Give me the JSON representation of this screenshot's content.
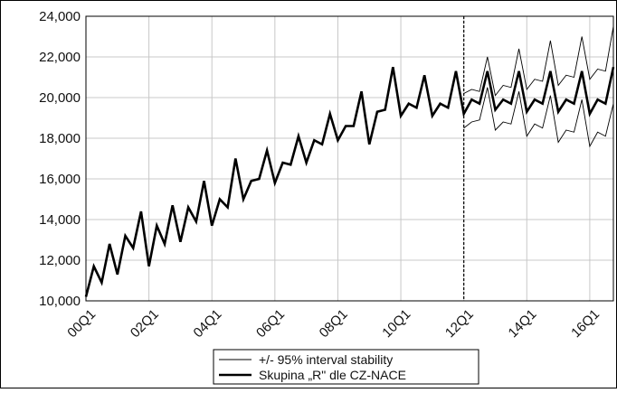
{
  "chart_data": {
    "type": "line",
    "xlabel": "",
    "ylabel": "",
    "ylim": [
      10000,
      24000
    ],
    "yticks": [
      10000,
      12000,
      14000,
      16000,
      18000,
      20000,
      22000,
      24000
    ],
    "ytick_labels": [
      "10,000",
      "12,000",
      "14,000",
      "16,000",
      "18,000",
      "20,000",
      "22,000",
      "24,000"
    ],
    "xticks": [
      "00Q1",
      "02Q1",
      "04Q1",
      "06Q1",
      "08Q1",
      "10Q1",
      "12Q1",
      "14Q1",
      "16Q1"
    ],
    "grid": true,
    "legend_position": "bottom",
    "forecast_start": "12Q1",
    "x": [
      "00Q1",
      "00Q2",
      "00Q3",
      "00Q4",
      "01Q1",
      "01Q2",
      "01Q3",
      "01Q4",
      "02Q1",
      "02Q2",
      "02Q3",
      "02Q4",
      "03Q1",
      "03Q2",
      "03Q3",
      "03Q4",
      "04Q1",
      "04Q2",
      "04Q3",
      "04Q4",
      "05Q1",
      "05Q2",
      "05Q3",
      "05Q4",
      "06Q1",
      "06Q2",
      "06Q3",
      "06Q4",
      "07Q1",
      "07Q2",
      "07Q3",
      "07Q4",
      "08Q1",
      "08Q2",
      "08Q3",
      "08Q4",
      "09Q1",
      "09Q2",
      "09Q3",
      "09Q4",
      "10Q1",
      "10Q2",
      "10Q3",
      "10Q4",
      "11Q1",
      "11Q2",
      "11Q3",
      "11Q4",
      "12Q1",
      "12Q2",
      "12Q3",
      "12Q4",
      "13Q1",
      "13Q2",
      "13Q3",
      "13Q4",
      "14Q1",
      "14Q2",
      "14Q3",
      "14Q4",
      "15Q1",
      "15Q2",
      "15Q3",
      "15Q4",
      "16Q1",
      "16Q2",
      "16Q3",
      "16Q4"
    ],
    "series": [
      {
        "name": "Skupina „R\" dle CZ-NACE",
        "color": "#000000",
        "values": [
          10200,
          11700,
          10900,
          12800,
          11300,
          13200,
          12600,
          14400,
          11700,
          13700,
          12800,
          14700,
          12900,
          14600,
          13900,
          15900,
          13700,
          15000,
          14600,
          17000,
          15000,
          15900,
          16000,
          17400,
          15800,
          16800,
          16700,
          18100,
          16800,
          17900,
          17700,
          19200,
          17900,
          18600,
          18600,
          20300,
          17700,
          19300,
          19400,
          21500,
          19100,
          19700,
          19500,
          21100,
          19100,
          19700,
          19500,
          21300,
          19200,
          19900,
          19700,
          21300,
          19400,
          19900,
          19700,
          21300,
          19300,
          19900,
          19700,
          21300,
          19300,
          19900,
          19700,
          21300,
          19200,
          19900,
          19700,
          21500
        ],
        "values_start": "00Q1"
      },
      {
        "name": "+/- 95% interval stability",
        "color": "#000000",
        "upper": [
          20200,
          20400,
          20300,
          22000,
          20100,
          20600,
          20500,
          22400,
          20400,
          20900,
          20800,
          22800,
          20600,
          21100,
          21000,
          23000,
          20900,
          21400,
          21300,
          23500
        ],
        "lower": [
          18500,
          18800,
          18900,
          20500,
          18400,
          18800,
          18700,
          20300,
          18100,
          18700,
          18500,
          20100,
          17800,
          18400,
          18300,
          19900,
          17600,
          18300,
          18100,
          19700
        ],
        "values_start": "12Q1"
      }
    ],
    "legend": [
      {
        "label": "+/- 95% interval stability",
        "style": "thin"
      },
      {
        "label": "Skupina „R\" dle CZ-NACE",
        "style": "thick"
      }
    ]
  }
}
